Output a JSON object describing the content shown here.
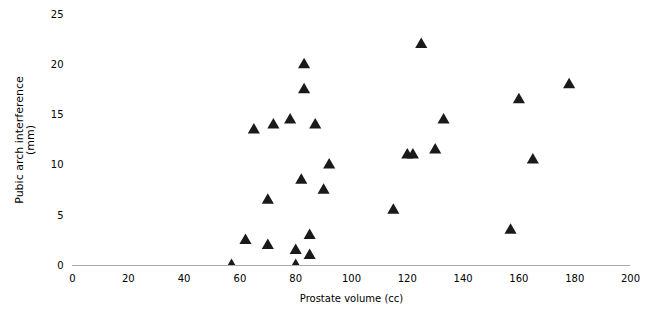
{
  "chart_data": {
    "type": "scatter",
    "x": [
      57,
      62,
      65,
      70,
      70,
      72,
      78,
      80,
      80,
      82,
      83,
      83,
      85,
      85,
      87,
      90,
      92,
      115,
      120,
      122,
      125,
      130,
      133,
      157,
      160,
      165,
      178
    ],
    "values": [
      0,
      2.5,
      13.5,
      2,
      6.5,
      14,
      14.5,
      0,
      1.5,
      8.5,
      17.5,
      20,
      1,
      3,
      14,
      7.5,
      10,
      5.5,
      11,
      11,
      22,
      11.5,
      14.5,
      3.5,
      16.5,
      10.5,
      18
    ],
    "xlabel": "Prostate volume (cc)",
    "ylabel": "Pubic arch interference\n(mm)",
    "xlim": [
      0,
      200
    ],
    "ylim": [
      0,
      25
    ],
    "xticks": [
      0,
      20,
      40,
      60,
      80,
      100,
      120,
      140,
      160,
      180,
      200
    ],
    "yticks": [
      0,
      5,
      10,
      15,
      20,
      25
    ],
    "marker": "triangle",
    "color": "#1a1a1a",
    "grid": false
  }
}
